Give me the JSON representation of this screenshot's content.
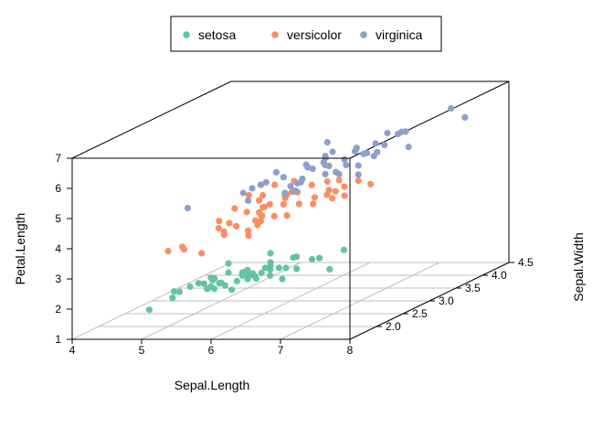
{
  "chart_data": {
    "type": "scatter",
    "title": "",
    "xlabel": "Sepal.Length",
    "ylabel": "Sepal.Width",
    "zlabel": "Petal.Length",
    "xlim": [
      4,
      8
    ],
    "ylim": [
      1.5,
      4.5
    ],
    "zlim": [
      1,
      7
    ],
    "x_ticks": [
      "4",
      "5",
      "6",
      "7",
      "8"
    ],
    "y_ticks": [
      "2.0",
      "2.5",
      "3.0",
      "3.5",
      "4.0",
      "4.5"
    ],
    "z_ticks": [
      "1",
      "2",
      "3",
      "4",
      "5",
      "6",
      "7"
    ],
    "grid": "on (x-y floor)",
    "legend_position": "top",
    "colors": {
      "setosa": "#66c2a5",
      "versicolor": "#fc8d62",
      "virginica": "#8da0cb"
    },
    "series": [
      {
        "name": "setosa",
        "color": "#66c2a5",
        "points": [
          [
            5.1,
            3.5,
            1.4
          ],
          [
            4.9,
            3.0,
            1.4
          ],
          [
            4.7,
            3.2,
            1.3
          ],
          [
            4.6,
            3.1,
            1.5
          ],
          [
            5.0,
            3.6,
            1.4
          ],
          [
            5.4,
            3.9,
            1.7
          ],
          [
            4.6,
            3.4,
            1.4
          ],
          [
            5.0,
            3.4,
            1.5
          ],
          [
            4.4,
            2.9,
            1.4
          ],
          [
            4.9,
            3.1,
            1.5
          ],
          [
            5.4,
            3.7,
            1.5
          ],
          [
            4.8,
            3.4,
            1.6
          ],
          [
            4.8,
            3.0,
            1.4
          ],
          [
            4.3,
            3.0,
            1.1
          ],
          [
            5.8,
            4.0,
            1.2
          ],
          [
            5.7,
            4.4,
            1.5
          ],
          [
            5.4,
            3.9,
            1.3
          ],
          [
            5.1,
            3.5,
            1.4
          ],
          [
            5.7,
            3.8,
            1.7
          ],
          [
            5.1,
            3.8,
            1.5
          ],
          [
            5.4,
            3.4,
            1.7
          ],
          [
            5.1,
            3.7,
            1.5
          ],
          [
            4.6,
            3.6,
            1.0
          ],
          [
            5.1,
            3.3,
            1.7
          ],
          [
            4.8,
            3.4,
            1.9
          ],
          [
            5.0,
            3.0,
            1.6
          ],
          [
            5.0,
            3.4,
            1.6
          ],
          [
            5.2,
            3.5,
            1.5
          ],
          [
            5.2,
            3.4,
            1.4
          ],
          [
            4.7,
            3.2,
            1.6
          ],
          [
            4.8,
            3.1,
            1.6
          ],
          [
            5.4,
            3.4,
            1.5
          ],
          [
            5.2,
            4.1,
            1.5
          ],
          [
            5.5,
            4.2,
            1.4
          ],
          [
            4.9,
            3.1,
            1.5
          ],
          [
            5.0,
            3.2,
            1.2
          ],
          [
            5.5,
            3.5,
            1.3
          ],
          [
            4.9,
            3.6,
            1.4
          ],
          [
            4.4,
            3.0,
            1.3
          ],
          [
            5.1,
            3.4,
            1.5
          ],
          [
            5.0,
            3.5,
            1.3
          ],
          [
            4.5,
            2.3,
            1.3
          ],
          [
            4.4,
            3.2,
            1.3
          ],
          [
            5.0,
            3.5,
            1.6
          ],
          [
            5.1,
            3.8,
            1.9
          ],
          [
            4.8,
            3.0,
            1.4
          ],
          [
            5.1,
            3.8,
            1.6
          ],
          [
            4.6,
            3.2,
            1.4
          ],
          [
            5.3,
            3.7,
            1.5
          ],
          [
            5.0,
            3.3,
            1.4
          ]
        ]
      },
      {
        "name": "versicolor",
        "color": "#fc8d62",
        "points": [
          [
            7.0,
            3.2,
            4.7
          ],
          [
            6.4,
            3.2,
            4.5
          ],
          [
            6.9,
            3.1,
            4.9
          ],
          [
            5.5,
            2.3,
            4.0
          ],
          [
            6.5,
            2.8,
            4.6
          ],
          [
            5.7,
            2.8,
            4.5
          ],
          [
            6.3,
            3.3,
            4.7
          ],
          [
            4.9,
            2.4,
            3.3
          ],
          [
            6.6,
            2.9,
            4.6
          ],
          [
            5.2,
            2.7,
            3.9
          ],
          [
            5.0,
            2.0,
            3.5
          ],
          [
            5.9,
            3.0,
            4.2
          ],
          [
            6.0,
            2.2,
            4.0
          ],
          [
            6.1,
            2.9,
            4.7
          ],
          [
            5.6,
            2.9,
            3.6
          ],
          [
            6.7,
            3.1,
            4.4
          ],
          [
            5.6,
            3.0,
            4.5
          ],
          [
            5.8,
            2.7,
            4.1
          ],
          [
            6.2,
            2.2,
            4.5
          ],
          [
            5.6,
            2.5,
            3.9
          ],
          [
            5.9,
            3.2,
            4.8
          ],
          [
            6.1,
            2.8,
            4.0
          ],
          [
            6.3,
            2.5,
            4.9
          ],
          [
            6.1,
            2.8,
            4.7
          ],
          [
            6.4,
            2.9,
            4.3
          ],
          [
            6.6,
            3.0,
            4.4
          ],
          [
            6.8,
            2.8,
            4.8
          ],
          [
            6.7,
            3.0,
            5.0
          ],
          [
            6.0,
            2.9,
            4.5
          ],
          [
            5.7,
            2.6,
            3.5
          ],
          [
            5.5,
            2.4,
            3.8
          ],
          [
            5.5,
            2.4,
            3.7
          ],
          [
            5.8,
            2.7,
            3.9
          ],
          [
            6.0,
            2.7,
            5.1
          ],
          [
            5.4,
            3.0,
            4.5
          ],
          [
            6.0,
            3.4,
            4.5
          ],
          [
            6.7,
            3.1,
            4.7
          ],
          [
            6.3,
            2.3,
            4.4
          ],
          [
            5.6,
            3.0,
            4.1
          ],
          [
            5.5,
            2.5,
            4.0
          ],
          [
            5.5,
            2.6,
            4.4
          ],
          [
            6.1,
            3.0,
            4.6
          ],
          [
            5.8,
            2.6,
            4.0
          ],
          [
            5.0,
            2.3,
            3.3
          ],
          [
            5.6,
            2.7,
            4.2
          ],
          [
            5.7,
            3.0,
            4.2
          ],
          [
            5.7,
            2.9,
            4.2
          ],
          [
            6.2,
            2.9,
            4.3
          ],
          [
            5.1,
            2.5,
            3.0
          ],
          [
            5.7,
            2.8,
            4.1
          ]
        ]
      },
      {
        "name": "virginica",
        "color": "#8da0cb",
        "points": [
          [
            6.3,
            3.3,
            6.0
          ],
          [
            5.8,
            2.7,
            5.1
          ],
          [
            7.1,
            3.0,
            5.9
          ],
          [
            6.3,
            2.9,
            5.6
          ],
          [
            6.5,
            3.0,
            5.8
          ],
          [
            7.6,
            3.0,
            6.6
          ],
          [
            4.9,
            2.5,
            4.5
          ],
          [
            7.3,
            2.9,
            6.3
          ],
          [
            6.7,
            2.5,
            5.8
          ],
          [
            7.2,
            3.6,
            6.1
          ],
          [
            6.5,
            3.2,
            5.1
          ],
          [
            6.4,
            2.7,
            5.3
          ],
          [
            6.8,
            3.0,
            5.5
          ],
          [
            5.7,
            2.5,
            5.0
          ],
          [
            5.8,
            2.8,
            5.1
          ],
          [
            6.4,
            3.2,
            5.3
          ],
          [
            6.5,
            3.0,
            5.5
          ],
          [
            7.7,
            3.8,
            6.7
          ],
          [
            7.7,
            2.6,
            6.9
          ],
          [
            6.0,
            2.2,
            5.0
          ],
          [
            6.9,
            3.2,
            5.7
          ],
          [
            5.6,
            2.8,
            4.9
          ],
          [
            7.7,
            2.8,
            6.7
          ],
          [
            6.3,
            2.7,
            4.9
          ],
          [
            6.7,
            3.3,
            5.7
          ],
          [
            7.2,
            3.2,
            6.0
          ],
          [
            6.2,
            2.8,
            4.8
          ],
          [
            6.1,
            3.0,
            4.9
          ],
          [
            6.4,
            2.8,
            5.6
          ],
          [
            7.2,
            3.0,
            5.8
          ],
          [
            7.4,
            2.8,
            6.1
          ],
          [
            7.9,
            3.8,
            6.4
          ],
          [
            6.4,
            2.8,
            5.6
          ],
          [
            6.3,
            2.8,
            5.1
          ],
          [
            6.1,
            2.6,
            5.6
          ],
          [
            7.7,
            3.0,
            6.1
          ],
          [
            6.3,
            3.4,
            5.6
          ],
          [
            6.4,
            3.1,
            5.5
          ],
          [
            6.0,
            3.0,
            4.8
          ],
          [
            6.9,
            3.1,
            5.4
          ],
          [
            6.7,
            3.1,
            5.6
          ],
          [
            6.9,
            3.1,
            5.1
          ],
          [
            5.8,
            2.7,
            5.1
          ],
          [
            6.8,
            3.2,
            5.9
          ],
          [
            6.7,
            3.3,
            5.7
          ],
          [
            6.7,
            3.0,
            5.2
          ],
          [
            6.3,
            2.5,
            5.0
          ],
          [
            6.5,
            3.0,
            5.2
          ],
          [
            6.2,
            3.4,
            5.4
          ],
          [
            5.9,
            3.0,
            5.1
          ]
        ]
      }
    ]
  }
}
